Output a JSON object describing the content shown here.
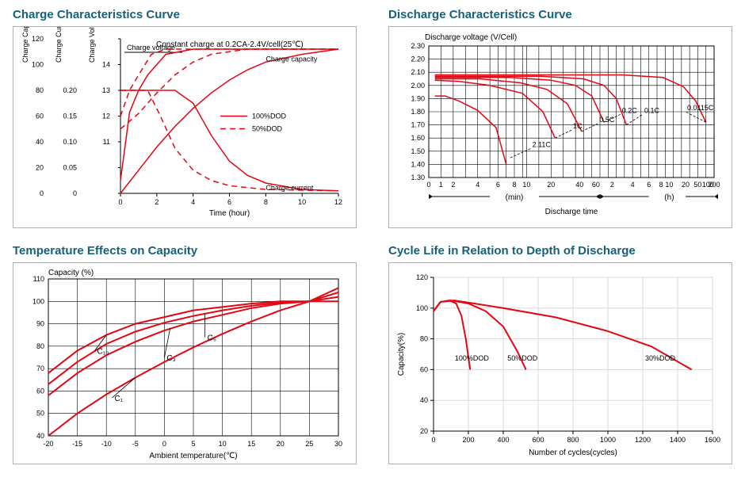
{
  "colors": {
    "title": "#17607a",
    "border": "#a8b2b8",
    "series": "#e30613",
    "grid_light": "#d9d9d9",
    "grid_dark": "#000000",
    "text": "#000000",
    "bg": "#ffffff"
  },
  "panels": {
    "charge": {
      "title": "Charge Characteristics Curve",
      "subtitle": "Constant charge at 0.2CA-2.4V/cell(25℃)",
      "axes_left": [
        {
          "label": "Charge Capacity (%)",
          "ticks": [
            "120",
            "100",
            "80",
            "60",
            "40",
            "20",
            "0"
          ]
        },
        {
          "label": "Charge Current (CA)",
          "ticks": [
            "",
            "",
            "0.20",
            "0.15",
            "0.10",
            "0.05",
            "0"
          ]
        },
        {
          "label": "Charge Voltage (V)",
          "ticks": [
            "",
            "14",
            "13",
            "12",
            "11",
            ""
          ]
        }
      ],
      "x": {
        "label": "Time (hour)",
        "ticks": [
          "0",
          "2",
          "4",
          "6",
          "8",
          "10",
          "12"
        ],
        "min": 0,
        "max": 12
      },
      "y_percent": {
        "min": 0,
        "max": 120
      },
      "labels_inside": {
        "charge_voltage": "Charge voltage",
        "charge_capacity": "Charge capacity",
        "charge_current": "Charge current"
      },
      "legend": [
        {
          "style": "solid",
          "text": "100%DOD"
        },
        {
          "style": "dash",
          "text": "50%DOD"
        }
      ],
      "series": {
        "voltage_100": [
          [
            0,
            10
          ],
          [
            0.5,
            63
          ],
          [
            1,
            80
          ],
          [
            1.5,
            92
          ],
          [
            2.5,
            108
          ],
          [
            4,
            112
          ],
          [
            12,
            112
          ]
        ],
        "voltage_50": [
          [
            0,
            60
          ],
          [
            0.5,
            80
          ],
          [
            1,
            92
          ],
          [
            1.7,
            108
          ],
          [
            2.5,
            112
          ],
          [
            12,
            112
          ]
        ],
        "capacity_100": [
          [
            0,
            0
          ],
          [
            1,
            18
          ],
          [
            2,
            36
          ],
          [
            3,
            52
          ],
          [
            4,
            66
          ],
          [
            5,
            78
          ],
          [
            6,
            88
          ],
          [
            7,
            96
          ],
          [
            8,
            102
          ],
          [
            10,
            108
          ],
          [
            12,
            112
          ]
        ],
        "capacity_50": [
          [
            0,
            50
          ],
          [
            1,
            62
          ],
          [
            2,
            78
          ],
          [
            3,
            92
          ],
          [
            4,
            102
          ],
          [
            5,
            108
          ],
          [
            7,
            112
          ],
          [
            12,
            112
          ]
        ],
        "current_100": [
          [
            0,
            80
          ],
          [
            3,
            80
          ],
          [
            4,
            70
          ],
          [
            5,
            45
          ],
          [
            6,
            25
          ],
          [
            7,
            14
          ],
          [
            8,
            8
          ],
          [
            10,
            3
          ],
          [
            12,
            2
          ]
        ],
        "current_50": [
          [
            0,
            80
          ],
          [
            1.5,
            80
          ],
          [
            2.2,
            60
          ],
          [
            3,
            35
          ],
          [
            4,
            18
          ],
          [
            5,
            10
          ],
          [
            6,
            6
          ],
          [
            8,
            3
          ],
          [
            12,
            2
          ]
        ]
      }
    },
    "discharge": {
      "title": "Discharge Characteristics Curve",
      "y": {
        "label": "Discharge voltage (V/Cell)",
        "ticks": [
          "2.30",
          "2.20",
          "2.10",
          "2.00",
          "1.90",
          "1.80",
          "1.70",
          "1.60",
          "1.50",
          "1.40",
          "1.30"
        ],
        "min": 1.3,
        "max": 2.3
      },
      "x": {
        "label": "Discharge time",
        "ticks_min": [
          "0",
          "1",
          "2",
          "4",
          "6",
          "8",
          "10",
          "20",
          "40",
          "60"
        ],
        "ticks_h": [
          "2",
          "4",
          "6",
          "8",
          "10",
          "20",
          "50",
          "100",
          "200"
        ],
        "unit_min": "(min)",
        "unit_h": "(h)"
      },
      "series_labels": [
        "2.11C",
        "1C",
        "0.5C",
        "0.2C",
        "0.1C",
        "0.0115C"
      ],
      "curves": [
        [
          [
            3,
            1.92
          ],
          [
            8,
            1.92
          ],
          [
            15,
            1.88
          ],
          [
            24,
            1.81
          ],
          [
            33,
            1.68
          ],
          [
            38,
            1.4
          ]
        ],
        [
          [
            3,
            2.04
          ],
          [
            15,
            2.03
          ],
          [
            30,
            2.0
          ],
          [
            46,
            1.94
          ],
          [
            56,
            1.8
          ],
          [
            62,
            1.6
          ]
        ],
        [
          [
            3,
            2.05
          ],
          [
            25,
            2.05
          ],
          [
            45,
            2.02
          ],
          [
            58,
            1.97
          ],
          [
            68,
            1.86
          ],
          [
            75,
            1.65
          ]
        ],
        [
          [
            3,
            2.06
          ],
          [
            40,
            2.06
          ],
          [
            60,
            2.04
          ],
          [
            72,
            2.0
          ],
          [
            80,
            1.92
          ],
          [
            86,
            1.72
          ]
        ],
        [
          [
            3,
            2.07
          ],
          [
            55,
            2.07
          ],
          [
            76,
            2.05
          ],
          [
            86,
            2.0
          ],
          [
            92,
            1.9
          ],
          [
            97,
            1.7
          ]
        ],
        [
          [
            3,
            2.08
          ],
          [
            95,
            2.08
          ],
          [
            115,
            2.06
          ],
          [
            125,
            1.99
          ],
          [
            131,
            1.88
          ],
          [
            136,
            1.72
          ]
        ]
      ],
      "leader_lines": [
        {
          "from": [
            40,
            1.45
          ],
          "to": [
            50,
            1.52
          ],
          "text": "2.11C"
        },
        {
          "from": [
            62,
            1.6
          ],
          "to": [
            70,
            1.66
          ],
          "text": "1C"
        },
        {
          "from": [
            75,
            1.65
          ],
          "to": [
            83,
            1.71
          ],
          "text": "0.5C"
        },
        {
          "from": [
            86,
            1.72
          ],
          "to": [
            94,
            1.78
          ],
          "text": "0.2C"
        },
        {
          "from": [
            97,
            1.7
          ],
          "to": [
            105,
            1.78
          ],
          "text": "0.1C"
        },
        {
          "from": [
            136,
            1.72
          ],
          "to": [
            126,
            1.8
          ],
          "text": "0.0115C"
        }
      ]
    },
    "temp": {
      "title": "Temperature Effects on Capacity",
      "y": {
        "label": "Capacity (%)",
        "ticks": [
          "110",
          "100",
          "90",
          "80",
          "70",
          "60",
          "50",
          "40"
        ],
        "min": 40,
        "max": 110
      },
      "x": {
        "label": "Ambient temperature(℃)",
        "ticks": [
          "-20",
          "-15",
          "-10",
          "-5",
          "0",
          "5",
          "10",
          "15",
          "20",
          "25",
          "30"
        ],
        "min": -20,
        "max": 30
      },
      "curve_labels": [
        "C₁₀",
        "C₅",
        "C₃",
        "C₁"
      ],
      "curves": {
        "C10": [
          [
            -20,
            68
          ],
          [
            -15,
            78
          ],
          [
            -10,
            85
          ],
          [
            -5,
            90
          ],
          [
            0,
            93
          ],
          [
            5,
            96
          ],
          [
            10,
            97.5
          ],
          [
            15,
            99
          ],
          [
            20,
            100
          ],
          [
            25,
            100
          ],
          [
            30,
            106
          ]
        ],
        "C5": [
          [
            -20,
            63
          ],
          [
            -15,
            73
          ],
          [
            -10,
            81
          ],
          [
            -5,
            86.5
          ],
          [
            0,
            90.5
          ],
          [
            5,
            93.5
          ],
          [
            10,
            96
          ],
          [
            15,
            98
          ],
          [
            20,
            99.5
          ],
          [
            25,
            100
          ],
          [
            30,
            104
          ]
        ],
        "C3": [
          [
            -20,
            58
          ],
          [
            -15,
            68
          ],
          [
            -10,
            76
          ],
          [
            -5,
            82
          ],
          [
            0,
            87
          ],
          [
            5,
            91
          ],
          [
            10,
            94
          ],
          [
            15,
            97
          ],
          [
            20,
            99
          ],
          [
            25,
            100
          ],
          [
            30,
            102
          ]
        ],
        "C1": [
          [
            -20,
            40
          ],
          [
            -15,
            50
          ],
          [
            -10,
            58.5
          ],
          [
            -5,
            66
          ],
          [
            0,
            73
          ],
          [
            5,
            79.5
          ],
          [
            10,
            85.5
          ],
          [
            15,
            91
          ],
          [
            20,
            96
          ],
          [
            25,
            100
          ],
          [
            30,
            100
          ]
        ]
      },
      "leaders": [
        {
          "pt": [
            -10,
            85
          ],
          "text": "C₁₀",
          "text_at": [
            -12,
            78
          ]
        },
        {
          "pt": [
            7,
            94.8
          ],
          "text": "C₅",
          "text_at": [
            7,
            84
          ]
        },
        {
          "pt": [
            1,
            88
          ],
          "text": "C₃",
          "text_at": [
            0,
            75
          ]
        },
        {
          "pt": [
            -5,
            66
          ],
          "text": "C₁",
          "text_at": [
            -9,
            57
          ]
        }
      ]
    },
    "cycle": {
      "title": "Cycle Life in Relation to Depth of Discharge",
      "y": {
        "label": "Capacity(%)",
        "ticks": [
          "120",
          "100",
          "80",
          "60",
          "40",
          "20"
        ],
        "min": 20,
        "max": 120
      },
      "x": {
        "label": "Number of cycles(cycles)",
        "ticks": [
          "0",
          "200",
          "400",
          "600",
          "800",
          "1000",
          "1200",
          "1400",
          "1600"
        ],
        "min": 0,
        "max": 1600
      },
      "curve_labels": [
        "100%DOD",
        "50%DOD",
        "30%DOD"
      ],
      "curves": {
        "100": [
          [
            0,
            98
          ],
          [
            40,
            104
          ],
          [
            90,
            105
          ],
          [
            130,
            103
          ],
          [
            160,
            95
          ],
          [
            185,
            80
          ],
          [
            210,
            60
          ]
        ],
        "50": [
          [
            0,
            98
          ],
          [
            40,
            104
          ],
          [
            100,
            105
          ],
          [
            200,
            103
          ],
          [
            300,
            98
          ],
          [
            400,
            88
          ],
          [
            480,
            72
          ],
          [
            530,
            60
          ]
        ],
        "30": [
          [
            0,
            98
          ],
          [
            40,
            104
          ],
          [
            120,
            105
          ],
          [
            400,
            100
          ],
          [
            700,
            94
          ],
          [
            1000,
            85
          ],
          [
            1250,
            75
          ],
          [
            1480,
            60
          ]
        ]
      },
      "labels_at": {
        "100": [
          220,
          66
        ],
        "50": [
          510,
          66
        ],
        "30": [
          1300,
          66
        ]
      }
    }
  }
}
